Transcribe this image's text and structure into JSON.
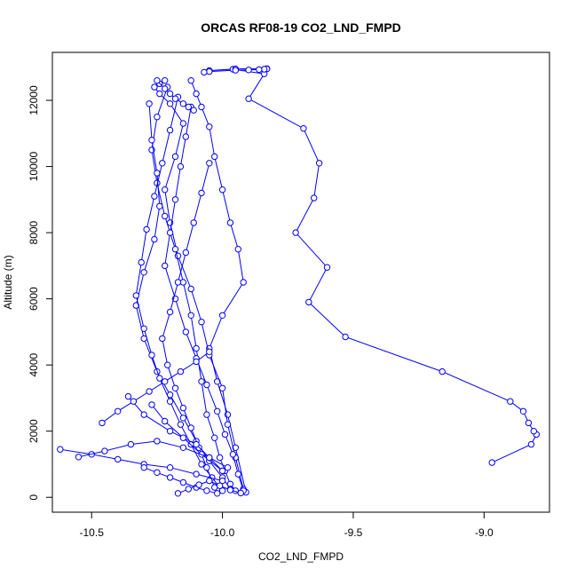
{
  "chart_data": {
    "type": "line",
    "title": "ORCAS RF08-19 CO2_LND_FMPD",
    "xlabel": "CO2_LND_FMPD",
    "ylabel": "Altitude (m)",
    "xlim": [
      -10.65,
      -8.75
    ],
    "ylim": [
      -450,
      13450
    ],
    "x_ticks": [
      -10.5,
      -10.0,
      -9.5,
      -9.0
    ],
    "x_tick_labels": [
      "-10.5",
      "-10.0",
      "-9.5",
      "-9.0"
    ],
    "y_ticks": [
      0,
      2000,
      4000,
      6000,
      8000,
      10000,
      12000
    ],
    "y_tick_labels": [
      "0",
      "2000",
      "4000",
      "6000",
      "8000",
      "10000",
      "12000"
    ],
    "grid": false,
    "legend": "none",
    "series_color": "#0000ff",
    "marker": "open-circle",
    "series": [
      {
        "x": [
          -8.97,
          -8.82,
          -8.8,
          -8.81,
          -8.83,
          -8.85,
          -8.9,
          -9.16,
          -9.53,
          -9.67,
          -9.6,
          -9.72,
          -9.65,
          -9.63,
          -9.69,
          -9.9,
          -9.84,
          -9.96,
          -10.05,
          -9.95,
          -9.83,
          -9.83,
          -9.84,
          -9.86,
          -9.9,
          -9.95,
          -10.05,
          -10.07
        ],
        "y": [
          1050,
          1600,
          1900,
          2000,
          2250,
          2600,
          2900,
          3800,
          4850,
          5900,
          6950,
          8000,
          9050,
          10100,
          11150,
          12050,
          12800,
          12940,
          12900,
          12950,
          12960,
          12950,
          12940,
          12930,
          12920,
          12910,
          12870,
          12850
        ]
      },
      {
        "x": [
          -9.91,
          -9.95,
          -9.98,
          -10.02,
          -10.05,
          -10.0,
          -9.92,
          -9.94,
          -9.97,
          -10.0,
          -10.03,
          -10.05,
          -10.08,
          -10.1,
          -10.12
        ],
        "y": [
          150,
          1500,
          2500,
          3500,
          4500,
          5500,
          6500,
          7500,
          8300,
          9300,
          10300,
          11200,
          11800,
          12200,
          12600
        ]
      },
      {
        "x": [
          -9.92,
          -9.95,
          -9.98,
          -10.0,
          -10.05,
          -10.08,
          -10.12,
          -10.17,
          -10.2,
          -10.22,
          -10.18,
          -10.15,
          -10.2,
          -10.24,
          -10.26,
          -10.24,
          -10.22
        ],
        "y": [
          250,
          1200,
          2200,
          3300,
          4300,
          5300,
          6300,
          7300,
          8300,
          9300,
          10300,
          11300,
          11900,
          12200,
          12400,
          12500,
          12600
        ]
      },
      {
        "x": [
          -10.21,
          -10.25,
          -10.27,
          -10.25,
          -10.22,
          -10.18,
          -10.15,
          -10.12,
          -10.1,
          -10.08,
          -10.06,
          -10.03,
          -10.01,
          -9.99,
          -9.97,
          -9.95
        ],
        "y": [
          12400,
          11500,
          10500,
          9500,
          8500,
          7500,
          6500,
          5500,
          4500,
          3500,
          2500,
          1800,
          1200,
          800,
          400,
          200
        ]
      },
      {
        "x": [
          -10.28,
          -10.27,
          -10.25,
          -10.24,
          -10.26,
          -10.3,
          -10.33,
          -10.3,
          -10.25,
          -10.2,
          -10.15,
          -10.1,
          -10.05,
          -10.0,
          -9.97
        ],
        "y": [
          11900,
          10800,
          9800,
          8800,
          7800,
          6800,
          5800,
          4800,
          3800,
          3100,
          2400,
          1700,
          1100,
          600,
          250
        ]
      },
      {
        "x": [
          -10.12,
          -10.14,
          -10.16,
          -10.18,
          -10.2,
          -10.22,
          -10.18,
          -10.14,
          -10.1,
          -10.06,
          -10.02,
          -9.99,
          -9.96,
          -9.94,
          -9.92
        ],
        "y": [
          11800,
          10900,
          10000,
          9000,
          8000,
          7000,
          6000,
          5000,
          4200,
          3400,
          2600,
          1900,
          1300,
          700,
          200
        ]
      },
      {
        "x": [
          -10.17,
          -10.2,
          -10.23,
          -10.26,
          -10.29,
          -10.31,
          -10.33,
          -10.3,
          -10.27,
          -10.24,
          -10.2,
          -10.16,
          -10.12,
          -10.08,
          -10.04,
          -10.0
        ],
        "y": [
          12100,
          11100,
          10100,
          9100,
          8100,
          7100,
          6100,
          5100,
          4300,
          3600,
          2900,
          2200,
          1600,
          1000,
          600,
          200
        ]
      },
      {
        "x": [
          -10.03,
          -10.06,
          -10.09,
          -10.12,
          -10.15,
          -10.18,
          -10.21,
          -10.23,
          -10.2,
          -10.17,
          -10.14,
          -10.11,
          -10.08,
          -10.05
        ],
        "y": [
          300,
          900,
          1500,
          2100,
          2700,
          3300,
          4000,
          4800,
          5600,
          6500,
          7400,
          8300,
          9200,
          10100
        ]
      },
      {
        "x": [
          -10.36,
          -10.3,
          -10.2,
          -10.1,
          -10.05,
          -10.0,
          -10.08,
          -10.15,
          -10.22,
          -10.27
        ],
        "y": [
          3050,
          2500,
          2000,
          1600,
          1200,
          800,
          1300,
          1800,
          2300,
          2800
        ]
      },
      {
        "x": [
          -10.62,
          -10.5,
          -10.4,
          -10.3,
          -10.2,
          -10.1,
          -10.0
        ],
        "y": [
          1450,
          1300,
          1150,
          1000,
          900,
          700,
          500
        ]
      },
      {
        "x": [
          -10.55,
          -10.45,
          -10.35,
          -10.25,
          -10.15,
          -10.05,
          -9.98
        ],
        "y": [
          1220,
          1400,
          1600,
          1700,
          1500,
          1200,
          900
        ]
      },
      {
        "x": [
          -10.46,
          -10.4,
          -10.34,
          -10.28,
          -10.22,
          -10.16,
          -10.1,
          -10.05
        ],
        "y": [
          2250,
          2600,
          2900,
          3200,
          3500,
          3800,
          4100,
          4400
        ]
      },
      {
        "x": [
          -10.3,
          -10.25,
          -10.2,
          -10.15,
          -10.1,
          -10.06,
          -10.02
        ],
        "y": [
          900,
          750,
          600,
          450,
          300,
          200,
          120
        ]
      },
      {
        "x": [
          -10.17,
          -10.13,
          -10.09,
          -10.05,
          -10.01,
          -9.97,
          -9.93
        ],
        "y": [
          120,
          250,
          380,
          500,
          350,
          220,
          130
        ]
      },
      {
        "x": [
          -10.25,
          -10.22,
          -10.2,
          -10.18,
          -10.15,
          -10.13,
          -10.11
        ],
        "y": [
          12600,
          12350,
          12200,
          12050,
          11900,
          11800,
          11700
        ]
      }
    ]
  }
}
